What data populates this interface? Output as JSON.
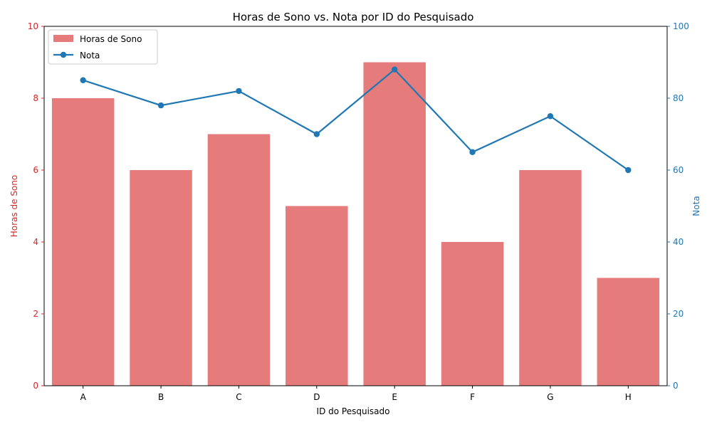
{
  "chart_data": {
    "type": "bar",
    "title": "Horas de Sono vs. Nota por ID do Pesquisado",
    "xlabel": "ID do Pesquisado",
    "ylabel_left": "Horas de Sono",
    "ylabel_right": "Nota",
    "categories": [
      "A",
      "B",
      "C",
      "D",
      "E",
      "F",
      "G",
      "H"
    ],
    "series": [
      {
        "name": "Horas de Sono",
        "type": "bar",
        "axis": "left",
        "color": "#e57b7b",
        "values": [
          8,
          6,
          7,
          5,
          9,
          4,
          6,
          3
        ]
      },
      {
        "name": "Nota",
        "type": "line",
        "axis": "right",
        "color": "#1f77b4",
        "values": [
          85,
          78,
          82,
          70,
          88,
          65,
          75,
          60
        ]
      }
    ],
    "ylim_left": [
      0,
      10
    ],
    "ylim_right": [
      0,
      100
    ],
    "yticks_left": [
      "0",
      "2",
      "4",
      "6",
      "8",
      "10"
    ],
    "yticks_right": [
      "0",
      "20",
      "40",
      "60",
      "80",
      "100"
    ],
    "left_axis_color": "#d62728",
    "right_axis_color": "#1f77b4",
    "grid": false,
    "legend_position": "upper-left"
  }
}
